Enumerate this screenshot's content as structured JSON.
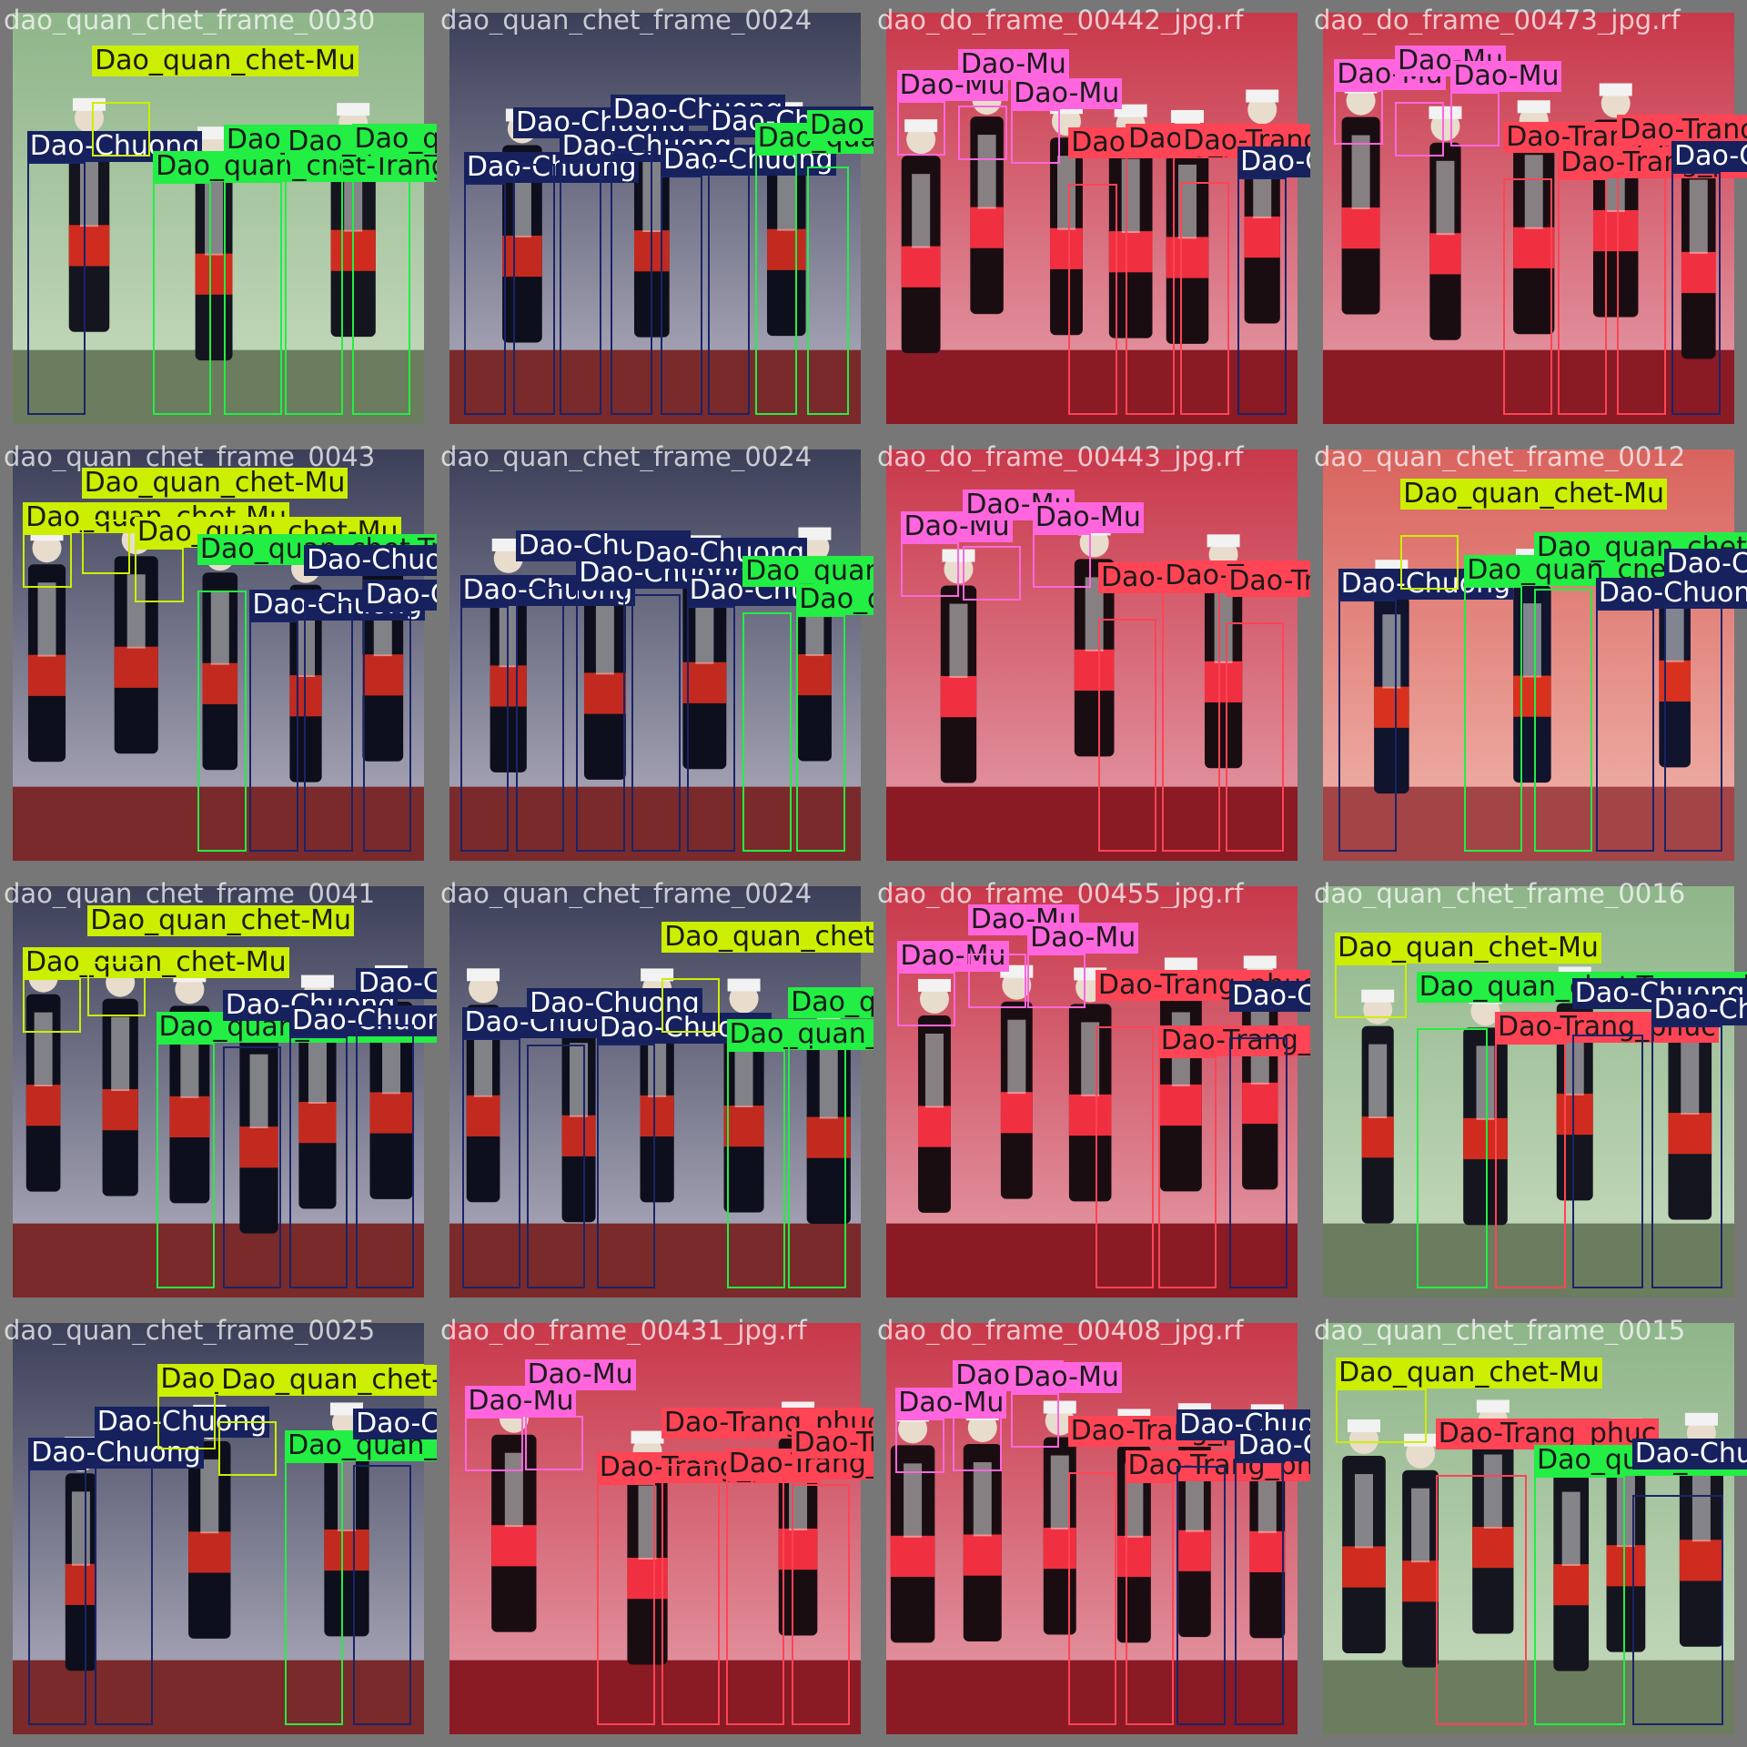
{
  "classes": {
    "Dao-Chuong": {
      "stroke": "#1a2468",
      "fill": "#16215e",
      "text": "#ffffff"
    },
    "Dao_quan_chet-Mu": {
      "stroke": "#ccee00",
      "fill": "#ccee00",
      "text": "#1a1a1a"
    },
    "Dao_quan_chet-Trang_phuc": {
      "stroke": "#22ee44",
      "fill": "#22ee44",
      "text": "#1a1a1a"
    },
    "Dao-Mu": {
      "stroke": "#ff66dd",
      "fill": "#ff66dd",
      "text": "#1a1a1a"
    },
    "Dao-Trang_phuc": {
      "stroke": "#ff4455",
      "fill": "#ff4455",
      "text": "#1a1a1a"
    }
  },
  "tiles": [
    {
      "filename": "dao_quan_chet_frame_0030",
      "scene": "green",
      "labels": [
        {
          "text": "Dao-Chuong",
          "cls": "Dao-Chuong"
        },
        {
          "text": "Dao_quan_chet-Mu",
          "cls": "Dao_quan_chet-Mu"
        },
        {
          "text": "Dao_quan_chet-Trang_phuc",
          "cls": "Dao_quan_chet-Trang_phuc"
        },
        {
          "text": "Dao_quan_chet-Trang_phuc",
          "cls": "Dao_quan_chet-Trang_phuc"
        },
        {
          "text": "Dao_quan_chet-Trang_phuc",
          "cls": "Dao_quan_chet-Trang_phuc"
        },
        {
          "text": "Dao_quan_chet-Trang_phuc",
          "cls": "Dao_quan_chet-Trang_phuc"
        }
      ]
    },
    {
      "filename": "dao_quan_chet_frame_0024",
      "scene": "stage",
      "labels": [
        {
          "text": "Dao-Chuong",
          "cls": "Dao-Chuong"
        },
        {
          "text": "Dao-Chuong",
          "cls": "Dao-Chuong"
        },
        {
          "text": "Dao-Chuong",
          "cls": "Dao-Chuong"
        },
        {
          "text": "Dao-Chuong",
          "cls": "Dao-Chuong"
        },
        {
          "text": "Dao-Chuong",
          "cls": "Dao-Chuong"
        },
        {
          "text": "Dao-Chuong",
          "cls": "Dao-Chuong"
        },
        {
          "text": "Dao_quan_chet-Trang_phuc",
          "cls": "Dao_quan_chet-Trang_phuc"
        },
        {
          "text": "Dao_quan_chet-Trang_phuc",
          "cls": "Dao_quan_chet-Trang_phuc"
        }
      ]
    },
    {
      "filename": "dao_do_frame_00442_jpg.rf",
      "scene": "red",
      "labels": [
        {
          "text": "Dao-Mu",
          "cls": "Dao-Mu"
        },
        {
          "text": "Dao-Mu",
          "cls": "Dao-Mu"
        },
        {
          "text": "Dao-Mu",
          "cls": "Dao-Mu"
        },
        {
          "text": "Dao-Trang_phuc",
          "cls": "Dao-Trang_phuc"
        },
        {
          "text": "Dao-Trang_phuc",
          "cls": "Dao-Trang_phuc"
        },
        {
          "text": "Dao-Trang_phuc",
          "cls": "Dao-Trang_phuc"
        },
        {
          "text": "Dao-Chuong",
          "cls": "Dao-Chuong"
        }
      ]
    },
    {
      "filename": "dao_do_frame_00473_jpg.rf",
      "scene": "red",
      "labels": [
        {
          "text": "Dao-Mu",
          "cls": "Dao-Mu"
        },
        {
          "text": "Dao-Mu",
          "cls": "Dao-Mu"
        },
        {
          "text": "Dao-Mu",
          "cls": "Dao-Mu"
        },
        {
          "text": "Dao-Trang_phuc",
          "cls": "Dao-Trang_phuc"
        },
        {
          "text": "Dao-Trang_phuc",
          "cls": "Dao-Trang_phuc"
        },
        {
          "text": "Dao-Trang_phuc",
          "cls": "Dao-Trang_phuc"
        },
        {
          "text": "Dao-Chuong",
          "cls": "Dao-Chuong"
        }
      ]
    },
    {
      "filename": "dao_quan_chet_frame_0043",
      "scene": "stage",
      "labels": [
        {
          "text": "Dao_quan_chet-Mu",
          "cls": "Dao_quan_chet-Mu"
        },
        {
          "text": "Dao_quan_chet-Mu",
          "cls": "Dao_quan_chet-Mu"
        },
        {
          "text": "Dao_quan_chet-Mu",
          "cls": "Dao_quan_chet-Mu"
        },
        {
          "text": "Dao_quan_chet-Trang_phuc",
          "cls": "Dao_quan_chet-Trang_phuc"
        },
        {
          "text": "Dao-Chuong",
          "cls": "Dao-Chuong"
        },
        {
          "text": "Dao-Chuong",
          "cls": "Dao-Chuong"
        },
        {
          "text": "Dao-Chuong",
          "cls": "Dao-Chuong"
        }
      ]
    },
    {
      "filename": "dao_quan_chet_frame_0024",
      "scene": "stage",
      "labels": [
        {
          "text": "Dao-Chuong",
          "cls": "Dao-Chuong"
        },
        {
          "text": "Dao-Chuong",
          "cls": "Dao-Chuong"
        },
        {
          "text": "Dao-Chuong",
          "cls": "Dao-Chuong"
        },
        {
          "text": "Dao-Chuong",
          "cls": "Dao-Chuong"
        },
        {
          "text": "Dao-Chuong",
          "cls": "Dao-Chuong"
        },
        {
          "text": "Dao_quan_chet-Trang_phuc",
          "cls": "Dao_quan_chet-Trang_phuc"
        },
        {
          "text": "Dao_quan_chet-Trang_phuc",
          "cls": "Dao_quan_chet-Trang_phuc"
        }
      ]
    },
    {
      "filename": "dao_do_frame_00443_jpg.rf",
      "scene": "red",
      "labels": [
        {
          "text": "Dao-Mu",
          "cls": "Dao-Mu"
        },
        {
          "text": "Dao-Mu",
          "cls": "Dao-Mu"
        },
        {
          "text": "Dao-Mu",
          "cls": "Dao-Mu"
        },
        {
          "text": "Dao-Trang_phuc",
          "cls": "Dao-Trang_phuc"
        },
        {
          "text": "Dao-Trang_phuc",
          "cls": "Dao-Trang_phuc"
        },
        {
          "text": "Dao-Trang_phuc",
          "cls": "Dao-Trang_phuc"
        }
      ]
    },
    {
      "filename": "dao_quan_chet_frame_0012",
      "scene": "pink",
      "labels": [
        {
          "text": "Dao-Chuong",
          "cls": "Dao-Chuong"
        },
        {
          "text": "Dao_quan_chet-Mu",
          "cls": "Dao_quan_chet-Mu"
        },
        {
          "text": "Dao_quan_chet-Trang_phuc",
          "cls": "Dao_quan_chet-Trang_phuc"
        },
        {
          "text": "Dao_quan_chet-Trang_phuc",
          "cls": "Dao_quan_chet-Trang_phuc"
        },
        {
          "text": "Dao-Chuong",
          "cls": "Dao-Chuong"
        },
        {
          "text": "Dao-Chuong",
          "cls": "Dao-Chuong"
        }
      ]
    },
    {
      "filename": "dao_quan_chet_frame_0041",
      "scene": "stage",
      "labels": [
        {
          "text": "Dao_quan_chet-Mu",
          "cls": "Dao_quan_chet-Mu"
        },
        {
          "text": "Dao_quan_chet-Mu",
          "cls": "Dao_quan_chet-Mu"
        },
        {
          "text": "Dao_quan_chet-Trang_phuc",
          "cls": "Dao_quan_chet-Trang_phuc"
        },
        {
          "text": "Dao-Chuong",
          "cls": "Dao-Chuong"
        },
        {
          "text": "Dao-Chuong",
          "cls": "Dao-Chuong"
        },
        {
          "text": "Dao-Chuong",
          "cls": "Dao-Chuong"
        }
      ]
    },
    {
      "filename": "dao_quan_chet_frame_0024",
      "scene": "stage",
      "labels": [
        {
          "text": "Dao-Chuong",
          "cls": "Dao-Chuong"
        },
        {
          "text": "Dao-Chuong",
          "cls": "Dao-Chuong"
        },
        {
          "text": "Dao-Chuong",
          "cls": "Dao-Chuong"
        },
        {
          "text": "Dao_quan_chet-Mu",
          "cls": "Dao_quan_chet-Mu"
        },
        {
          "text": "Dao_quan_chet-Trang_phuc",
          "cls": "Dao_quan_chet-Trang_phuc"
        },
        {
          "text": "Dao_quan_chet-Trang_phuc",
          "cls": "Dao_quan_chet-Trang_phuc"
        }
      ]
    },
    {
      "filename": "dao_do_frame_00455_jpg.rf",
      "scene": "red",
      "labels": [
        {
          "text": "Dao-Mu",
          "cls": "Dao-Mu"
        },
        {
          "text": "Dao-Mu",
          "cls": "Dao-Mu"
        },
        {
          "text": "Dao-Mu",
          "cls": "Dao-Mu"
        },
        {
          "text": "Dao-Trang_phuc",
          "cls": "Dao-Trang_phuc"
        },
        {
          "text": "Dao-Trang_phuc",
          "cls": "Dao-Trang_phuc"
        },
        {
          "text": "Dao-Chuong",
          "cls": "Dao-Chuong"
        }
      ]
    },
    {
      "filename": "dao_quan_chet_frame_0016",
      "scene": "green",
      "labels": [
        {
          "text": "Dao_quan_chet-Mu",
          "cls": "Dao_quan_chet-Mu"
        },
        {
          "text": "Dao_quan_chet-Trang_phuc",
          "cls": "Dao_quan_chet-Trang_phuc"
        },
        {
          "text": "Dao-Trang_phuc",
          "cls": "Dao-Trang_phuc"
        },
        {
          "text": "Dao-Chuong",
          "cls": "Dao-Chuong"
        },
        {
          "text": "Dao-Chuong",
          "cls": "Dao-Chuong"
        }
      ]
    },
    {
      "filename": "dao_quan_chet_frame_0025",
      "scene": "stage",
      "labels": [
        {
          "text": "Dao-Chuong",
          "cls": "Dao-Chuong"
        },
        {
          "text": "Dao-Chuong",
          "cls": "Dao-Chuong"
        },
        {
          "text": "Dao_quan_chet-Mu",
          "cls": "Dao_quan_chet-Mu"
        },
        {
          "text": "Dao_quan_chet-Mu",
          "cls": "Dao_quan_chet-Mu"
        },
        {
          "text": "Dao_quan_chet-Trang_phuc",
          "cls": "Dao_quan_chet-Trang_phuc"
        },
        {
          "text": "Dao-Chuong",
          "cls": "Dao-Chuong"
        }
      ]
    },
    {
      "filename": "dao_do_frame_00431_jpg.rf",
      "scene": "red",
      "labels": [
        {
          "text": "Dao-Mu",
          "cls": "Dao-Mu"
        },
        {
          "text": "Dao-Mu",
          "cls": "Dao-Mu"
        },
        {
          "text": "Dao-Trang_phuc",
          "cls": "Dao-Trang_phuc"
        },
        {
          "text": "Dao-Trang_phuc",
          "cls": "Dao-Trang_phuc"
        },
        {
          "text": "Dao-Trang_phuc",
          "cls": "Dao-Trang_phuc"
        },
        {
          "text": "Dao-Trang_phuc",
          "cls": "Dao-Trang_phuc"
        }
      ]
    },
    {
      "filename": "dao_do_frame_00408_jpg.rf",
      "scene": "red",
      "labels": [
        {
          "text": "Dao-Mu",
          "cls": "Dao-Mu"
        },
        {
          "text": "Dao-Mu",
          "cls": "Dao-Mu"
        },
        {
          "text": "Dao-Mu",
          "cls": "Dao-Mu"
        },
        {
          "text": "Dao-Trang_phuc",
          "cls": "Dao-Trang_phuc"
        },
        {
          "text": "Dao-Trang_phuc",
          "cls": "Dao-Trang_phuc"
        },
        {
          "text": "Dao-Chuong",
          "cls": "Dao-Chuong"
        },
        {
          "text": "Dao-Chuong",
          "cls": "Dao-Chuong"
        }
      ]
    },
    {
      "filename": "dao_quan_chet_frame_0015",
      "scene": "green",
      "labels": [
        {
          "text": "Dao_quan_chet-Mu",
          "cls": "Dao_quan_chet-Mu"
        },
        {
          "text": "Dao-Trang_phuc",
          "cls": "Dao-Trang_phuc"
        },
        {
          "text": "Dao_quan_chet-Trang_phuc",
          "cls": "Dao_quan_chet-Trang_phuc"
        },
        {
          "text": "Dao-Chuong",
          "cls": "Dao-Chuong"
        }
      ]
    }
  ]
}
